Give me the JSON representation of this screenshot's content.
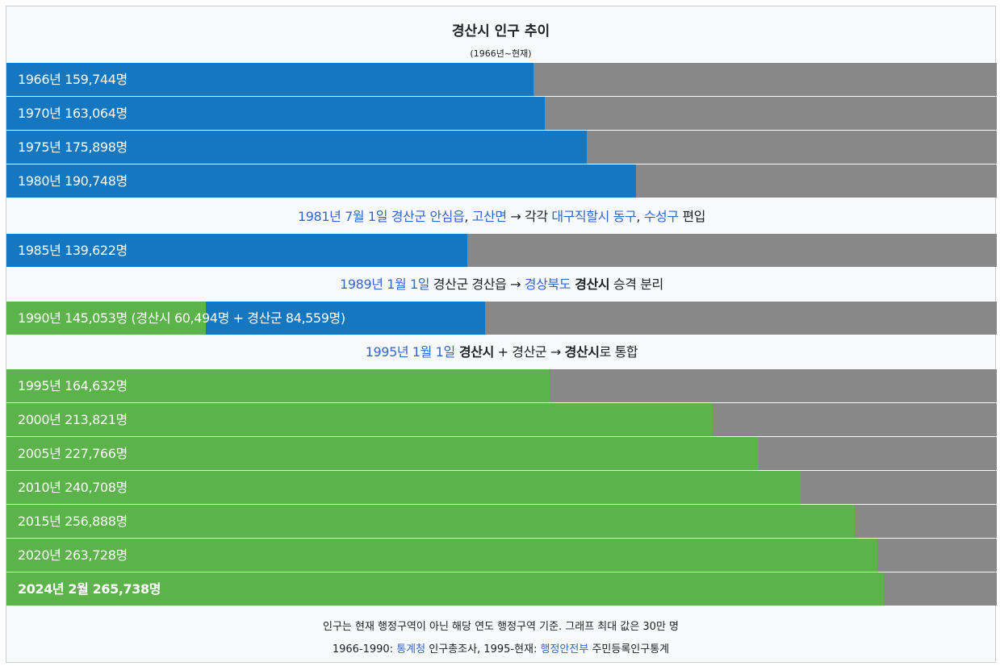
{
  "title": "경산시 인구 추이",
  "subtitle": "(1966년~현재)",
  "colors": {
    "city": "#1577c0",
    "county": "#5bb349",
    "remainder": "#888888",
    "link": "#3366cc"
  },
  "chart_data": {
    "type": "bar",
    "orientation": "horizontal",
    "title": "경산시 인구 추이",
    "subtitle": "(1966년~현재)",
    "max": 300000,
    "categories": [
      "1966년",
      "1970년",
      "1975년",
      "1980년",
      "1985년",
      "1990년",
      "1995년",
      "2000년",
      "2005년",
      "2010년",
      "2015년",
      "2020년",
      "2024년 2월"
    ],
    "values": [
      159744,
      163064,
      175898,
      190748,
      139622,
      145053,
      164632,
      213821,
      227766,
      240708,
      256888,
      263728,
      265738
    ],
    "split_1990": {
      "경산시": 60494,
      "경산군": 84559
    }
  },
  "rows": [
    {
      "label": "1966년 159,744명",
      "segments": [
        {
          "color": "blue",
          "value": 159744
        }
      ]
    },
    {
      "label": "1970년 163,064명",
      "segments": [
        {
          "color": "blue",
          "value": 163064
        }
      ]
    },
    {
      "label": "1975년 175,898명",
      "segments": [
        {
          "color": "blue",
          "value": 175898
        }
      ]
    },
    {
      "label": "1980년 190,748명",
      "segments": [
        {
          "color": "blue",
          "value": 190748
        }
      ]
    },
    {
      "label": "1985년 139,622명",
      "segments": [
        {
          "color": "blue",
          "value": 139622
        }
      ]
    },
    {
      "label": "1990년 145,053명 (경산시 60,494명 + 경산군 84,559명)",
      "segments": [
        {
          "color": "green",
          "value": 60494
        },
        {
          "color": "blue",
          "value": 84559
        }
      ]
    },
    {
      "label": "1995년 164,632명",
      "segments": [
        {
          "color": "green",
          "value": 164632
        }
      ]
    },
    {
      "label": "2000년 213,821명",
      "segments": [
        {
          "color": "green",
          "value": 213821
        }
      ]
    },
    {
      "label": "2005년 227,766명",
      "segments": [
        {
          "color": "green",
          "value": 227766
        }
      ]
    },
    {
      "label": "2010년 240,708명",
      "segments": [
        {
          "color": "green",
          "value": 240708
        }
      ]
    },
    {
      "label": "2015년 256,888명",
      "segments": [
        {
          "color": "green",
          "value": 256888
        }
      ]
    },
    {
      "label": "2020년 263,728명",
      "segments": [
        {
          "color": "green",
          "value": 263728
        }
      ]
    },
    {
      "label": "2024년 2월 265,738명",
      "bold": true,
      "segments": [
        {
          "color": "green",
          "value": 265738
        }
      ]
    }
  ],
  "notes": {
    "n1981": {
      "date": "1981년 7월 1일",
      "place1": "경산군 안심읍",
      "sep1": ",",
      "place2": "고산면",
      "arrow": " → 각각 ",
      "target1": "대구직할시 동구",
      "sep2": ",",
      "target2": "수성구",
      "tail": " 편입"
    },
    "n1989": {
      "date": "1989년 1월 1일",
      "place": " 경산군 경산읍 → ",
      "target": "경상북도",
      "city": " 경산시",
      "tail": " 승격 분리"
    },
    "n1995": {
      "date": "1995년 1월 1일",
      "a": " 경산시",
      "plus": " + 경산군 → ",
      "b": "경산시",
      "tail": "로 통합"
    }
  },
  "footer": {
    "line1": "인구는 현재 행정구역이 아닌 해당 연도 행정구역 기준. 그래프 최대 값은 30만 명",
    "line2_a": "1966-1990: ",
    "line2_link1": "통계청",
    "line2_b": " 인구총조사, 1995-현재: ",
    "line2_link2": "행정안전부",
    "line2_c": " 주민등록인구통계"
  }
}
